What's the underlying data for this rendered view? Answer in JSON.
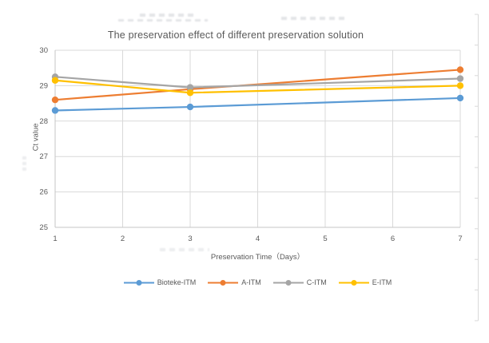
{
  "chart_data": {
    "type": "line",
    "title": "The preservation effect of different preservation solution",
    "xlabel": "Preservation Time（Days）",
    "ylabel": "Ct value",
    "x": [
      1,
      3,
      7
    ],
    "xlim": [
      1,
      7
    ],
    "ylim": [
      25,
      30
    ],
    "xticks": [
      1,
      2,
      3,
      4,
      5,
      6,
      7
    ],
    "yticks": [
      25,
      26,
      27,
      28,
      29,
      30
    ],
    "grid": true,
    "legend_position": "bottom",
    "series": [
      {
        "name": "Bioteke-ITM",
        "color": "#5B9BD5",
        "values": [
          28.3,
          28.4,
          28.65
        ]
      },
      {
        "name": "A-ITM",
        "color": "#ED7D31",
        "values": [
          28.6,
          28.9,
          29.45
        ]
      },
      {
        "name": "C-ITM",
        "color": "#A5A5A5",
        "values": [
          29.25,
          28.95,
          29.2
        ]
      },
      {
        "name": "E-ITM",
        "color": "#FFC000",
        "values": [
          29.15,
          28.8,
          29.0
        ]
      }
    ]
  },
  "colors": {
    "text": "#595959",
    "gridline": "#D9D9D9",
    "axis": "#C6C6C6",
    "background": "#FFFFFF"
  }
}
